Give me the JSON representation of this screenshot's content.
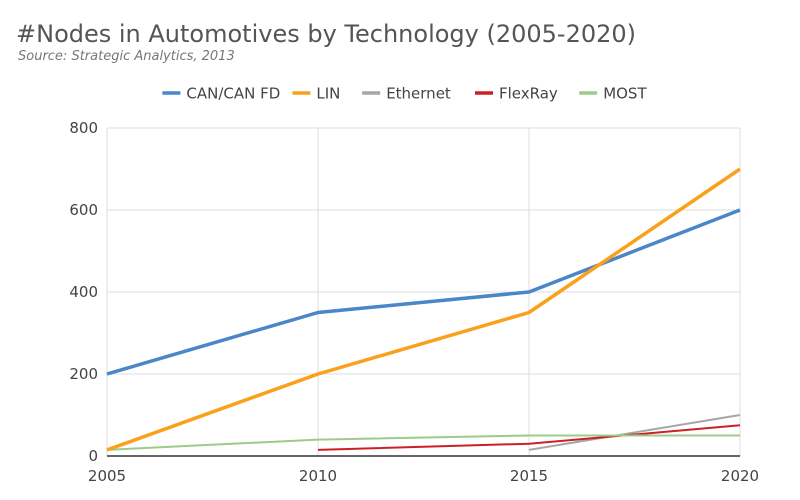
{
  "chart_data": {
    "type": "line",
    "title": "#Nodes in Automotives by Technology (2005-2020)",
    "subtitle": "Source: Strategic Analytics, 2013",
    "xlabel": "",
    "ylabel": "",
    "x_ticks": [
      "2005",
      "2010",
      "2015",
      "2020"
    ],
    "y_ticks": [
      "0",
      "200",
      "400",
      "600",
      "800"
    ],
    "xlim": [
      2005,
      2020
    ],
    "ylim": [
      0,
      800
    ],
    "grid": true,
    "legend_position": "top",
    "series": [
      {
        "name": "CAN/CAN FD",
        "color": "#4a86c8",
        "width": 3.5,
        "points": [
          [
            2005,
            200
          ],
          [
            2010,
            350
          ],
          [
            2015,
            400
          ],
          [
            2020,
            600
          ]
        ]
      },
      {
        "name": "LIN",
        "color": "#f9a11b",
        "width": 3.5,
        "points": [
          [
            2005,
            15
          ],
          [
            2010,
            200
          ],
          [
            2015,
            350
          ],
          [
            2020,
            700
          ]
        ]
      },
      {
        "name": "Ethernet",
        "color": "#a6a6a6",
        "width": 2,
        "points": [
          [
            2015,
            15
          ],
          [
            2020,
            100
          ]
        ]
      },
      {
        "name": "FlexRay",
        "color": "#cc2027",
        "width": 2,
        "points": [
          [
            2010,
            15
          ],
          [
            2015,
            30
          ],
          [
            2020,
            75
          ]
        ]
      },
      {
        "name": "MOST",
        "color": "#9ccc8a",
        "width": 2,
        "points": [
          [
            2005,
            15
          ],
          [
            2010,
            40
          ],
          [
            2015,
            50
          ],
          [
            2020,
            50
          ]
        ]
      }
    ]
  }
}
